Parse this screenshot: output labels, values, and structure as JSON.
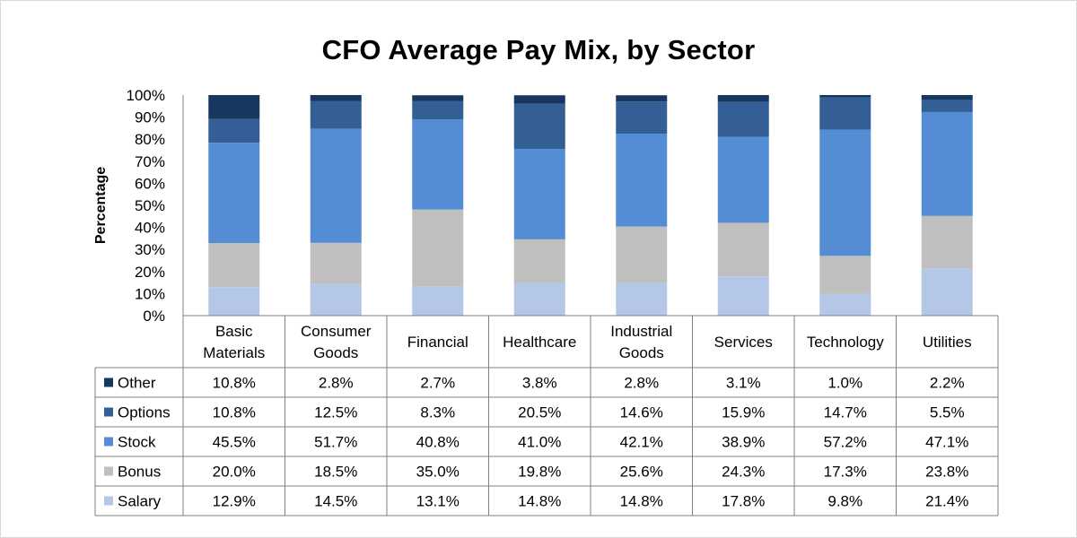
{
  "chart_data": {
    "type": "bar",
    "stacked": true,
    "title": "CFO Average Pay Mix, by Sector",
    "ylabel": "Percentage",
    "xlabel": "",
    "ylim": [
      0,
      100
    ],
    "y_ticks": [
      "0%",
      "10%",
      "20%",
      "30%",
      "40%",
      "50%",
      "60%",
      "70%",
      "80%",
      "90%",
      "100%"
    ],
    "categories": [
      [
        "Basic",
        "Materials"
      ],
      [
        "Consumer",
        "Goods"
      ],
      [
        "Financial"
      ],
      [
        "Healthcare"
      ],
      [
        "Industrial",
        "Goods"
      ],
      [
        "Services"
      ],
      [
        "Technology"
      ],
      [
        "Utilities"
      ]
    ],
    "series": [
      {
        "name": "Salary",
        "color": "#b4c7e7",
        "values": [
          12.9,
          14.5,
          13.1,
          14.8,
          14.8,
          17.8,
          9.8,
          21.4
        ],
        "labels": [
          "12.9%",
          "14.5%",
          "13.1%",
          "14.8%",
          "14.8%",
          "17.8%",
          "9.8%",
          "21.4%"
        ]
      },
      {
        "name": "Bonus",
        "color": "#bfbfbf",
        "values": [
          20.0,
          18.5,
          35.0,
          19.8,
          25.6,
          24.3,
          17.3,
          23.8
        ],
        "labels": [
          "20.0%",
          "18.5%",
          "35.0%",
          "19.8%",
          "25.6%",
          "24.3%",
          "17.3%",
          "23.8%"
        ]
      },
      {
        "name": "Stock",
        "color": "#548dd4",
        "values": [
          45.5,
          51.7,
          40.8,
          41.0,
          42.1,
          38.9,
          57.2,
          47.1
        ],
        "labels": [
          "45.5%",
          "51.7%",
          "40.8%",
          "41.0%",
          "42.1%",
          "38.9%",
          "57.2%",
          "47.1%"
        ]
      },
      {
        "name": "Options",
        "color": "#335f96",
        "values": [
          10.8,
          12.5,
          8.3,
          20.5,
          14.6,
          15.9,
          14.7,
          5.5
        ],
        "labels": [
          "10.8%",
          "12.5%",
          "8.3%",
          "20.5%",
          "14.6%",
          "15.9%",
          "14.7%",
          "5.5%"
        ]
      },
      {
        "name": "Other",
        "color": "#17375e",
        "values": [
          10.8,
          2.8,
          2.7,
          3.8,
          2.8,
          3.1,
          1.0,
          2.2
        ],
        "labels": [
          "10.8%",
          "2.8%",
          "2.7%",
          "3.8%",
          "2.8%",
          "3.1%",
          "1.0%",
          "2.2%"
        ]
      }
    ],
    "table_row_order": [
      "Other",
      "Options",
      "Stock",
      "Bonus",
      "Salary"
    ],
    "data_table": true,
    "grid": false
  }
}
